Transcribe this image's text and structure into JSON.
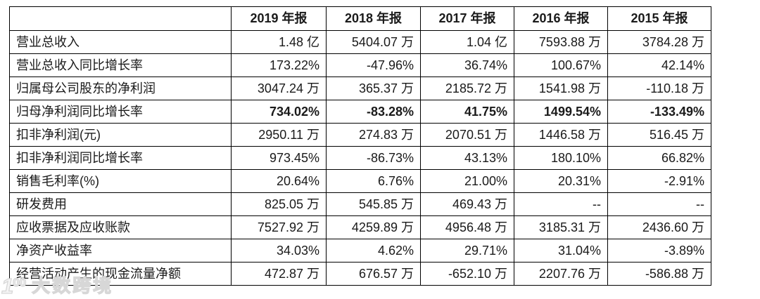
{
  "chart_data": {
    "type": "table",
    "title": "",
    "columns": [
      "",
      "2019 年报",
      "2018 年报",
      "2017 年报",
      "2016 年报",
      "2015 年报"
    ],
    "rows": [
      {
        "label": "营业总收入",
        "values": [
          "1.48 亿",
          "5404.07 万",
          "1.04 亿",
          "7593.88 万",
          "3784.28 万"
        ],
        "bold": false
      },
      {
        "label": "营业总收入同比增长率",
        "values": [
          "173.22%",
          "-47.96%",
          "36.74%",
          "100.67%",
          "42.14%"
        ],
        "bold": false
      },
      {
        "label": "归属母公司股东的净利润",
        "values": [
          "3047.24 万",
          "365.37 万",
          "2185.72 万",
          "1541.98 万",
          "-110.18 万"
        ],
        "bold": false
      },
      {
        "label": "归母净利润同比增长率",
        "values": [
          "734.02%",
          "-83.28%",
          "41.75%",
          "1499.54%",
          "-133.49%"
        ],
        "bold": true
      },
      {
        "label": "扣非净利润(元)",
        "values": [
          "2950.11 万",
          "274.83 万",
          "2070.51 万",
          "1446.58 万",
          "516.45 万"
        ],
        "bold": false
      },
      {
        "label": "扣非净利润同比增长率",
        "values": [
          "973.45%",
          "-86.73%",
          "43.13%",
          "180.10%",
          "66.82%"
        ],
        "bold": false
      },
      {
        "label": "销售毛利率(%)",
        "values": [
          "20.64%",
          "6.76%",
          "21.00%",
          "20.31%",
          "-2.91%"
        ],
        "bold": false
      },
      {
        "label": "研发费用",
        "values": [
          "825.05 万",
          "545.85 万",
          "469.43 万",
          "--",
          "--"
        ],
        "bold": false
      },
      {
        "label": "应收票据及应收账款",
        "values": [
          "7527.92 万",
          "4259.89 万",
          "4956.48 万",
          "3185.31 万",
          "2436.60 万"
        ],
        "bold": false
      },
      {
        "label": "净资产收益率",
        "values": [
          "34.03%",
          "4.62%",
          "29.71%",
          "31.04%",
          "-3.89%"
        ],
        "bold": false
      },
      {
        "label": "经营活动产生的现金流量净额",
        "values": [
          "472.87 万",
          "676.57 万",
          "-652.10 万",
          "2207.76 万",
          "-586.88 万"
        ],
        "bold": false
      }
    ]
  },
  "watermark": {
    "logo_one": "1",
    "logo_zeros": "00",
    "brand": "大数跨境"
  },
  "colors": {
    "border": "#000000",
    "text": "#1a1a1a",
    "background": "#ffffff",
    "watermark": "#d7d7d7"
  }
}
